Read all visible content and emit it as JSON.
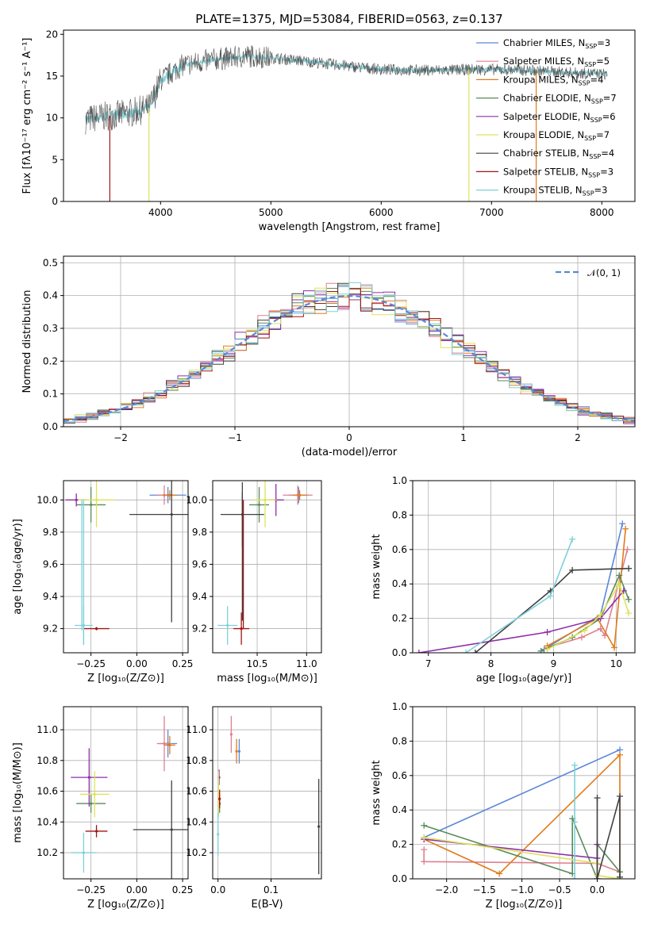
{
  "colors": {
    "Chabrier MILES": "#5b88d6",
    "Salpeter MILES": "#e07f8f",
    "Kroupa MILES": "#e07b1a",
    "Chabrier ELODIE": "#5a8a5a",
    "Salpeter ELODIE": "#8e2ea8",
    "Kroupa ELODIE": "#dde35a",
    "Chabrier STELIB": "#404040",
    "Salpeter STELIB": "#a01515",
    "Kroupa STELIB": "#7fd0d8"
  },
  "chart_data": [
    {
      "id": "spectrum",
      "type": "line",
      "title": "PLATE=1375, MJD=53084, FIBERID=0563, z=0.137",
      "xlabel": "wavelength [Angstrom, rest frame]",
      "ylabel": "Flux [fλ10⁻¹⁷ erg cm⁻² s⁻¹ A⁻¹]",
      "xlim": [
        3120,
        8300
      ],
      "ylim": [
        0,
        20.5
      ],
      "xticks": [
        4000,
        5000,
        6000,
        7000,
        8000
      ],
      "yticks": [
        0,
        5,
        10,
        15,
        20
      ],
      "grid": false,
      "legend_position": "top-right",
      "legend": [
        {
          "label": "Chabrier MILES, N",
          "sub": "SSP",
          "tail": "=3",
          "color_key": "Chabrier MILES"
        },
        {
          "label": "Salpeter MILES, N",
          "sub": "SSP",
          "tail": "=5",
          "color_key": "Salpeter MILES"
        },
        {
          "label": "Kroupa MILES, N",
          "sub": "SSP",
          "tail": "=4",
          "color_key": "Kroupa MILES"
        },
        {
          "label": "Chabrier ELODIE, N",
          "sub": "SSP",
          "tail": "=7",
          "color_key": "Chabrier ELODIE"
        },
        {
          "label": "Salpeter ELODIE, N",
          "sub": "SSP",
          "tail": "=6",
          "color_key": "Salpeter ELODIE"
        },
        {
          "label": "Kroupa ELODIE, N",
          "sub": "SSP",
          "tail": "=7",
          "color_key": "Kroupa ELODIE"
        },
        {
          "label": "Chabrier STELIB, N",
          "sub": "SSP",
          "tail": "=4",
          "color_key": "Chabrier STELIB"
        },
        {
          "label": "Salpeter STELIB, N",
          "sub": "SSP",
          "tail": "=3",
          "color_key": "Salpeter STELIB"
        },
        {
          "label": "Kroupa STELIB, N",
          "sub": "SSP",
          "tail": "=3",
          "color_key": "Kroupa STELIB"
        }
      ],
      "continuum": {
        "x": [
          3320,
          3500,
          3700,
          3900,
          4000,
          4200,
          4500,
          4800,
          5000,
          5300,
          5700,
          6000,
          6300,
          6600,
          6800,
          7000,
          7300,
          7600,
          7900,
          8050
        ],
        "y": [
          9.8,
          10.2,
          10.5,
          11.2,
          14.5,
          16.3,
          17.0,
          17.4,
          17.2,
          16.8,
          16.2,
          15.8,
          15.7,
          15.7,
          15.8,
          15.8,
          15.7,
          15.5,
          15.3,
          15.2
        ]
      },
      "drops": [
        {
          "x": 3540,
          "color_key": "Salpeter STELIB"
        },
        {
          "x": 3895,
          "color_key": "Kroupa ELODIE"
        },
        {
          "x": 6795,
          "color_key": "Kroupa ELODIE"
        },
        {
          "x": 7405,
          "color_key": "Kroupa MILES"
        }
      ]
    },
    {
      "id": "residuals",
      "type": "histogram",
      "xlabel": "(data-model)/error",
      "ylabel": "Normed distribution",
      "xlim": [
        -2.5,
        2.5
      ],
      "ylim": [
        0,
        0.52
      ],
      "xticks": [
        -2,
        -1,
        0,
        1,
        2
      ],
      "yticks": [
        0.0,
        0.1,
        0.2,
        0.3,
        0.4,
        0.5
      ],
      "grid": true,
      "bin_width": 0.1,
      "reference_legend": "𝒩(0, 1)",
      "reference_color": "#5b88d6"
    },
    {
      "id": "age-vs-Z",
      "type": "scatter",
      "xlabel": "Z [log₁₀(Z/Z⊙)]",
      "ylabel": "age  [log₁₀(age/yr)]",
      "xlim": [
        -0.4,
        0.28
      ],
      "ylim": [
        9.05,
        10.12
      ],
      "xticks": [
        -0.25,
        0.0,
        0.25
      ],
      "xtick_labels": [
        "−0.25",
        "0.00",
        "0.25"
      ],
      "yticks": [
        9.2,
        9.4,
        9.6,
        9.8,
        10.0
      ],
      "grid": true,
      "points": [
        {
          "x": 0.17,
          "y": 10.03,
          "xe": 0.1,
          "ye": 0.05,
          "color_key": "Chabrier MILES"
        },
        {
          "x": 0.15,
          "y": 10.03,
          "xe": 0.04,
          "ye": 0.06,
          "color_key": "Salpeter MILES"
        },
        {
          "x": 0.18,
          "y": 10.03,
          "xe": 0.04,
          "ye": 0.03,
          "color_key": "Kroupa MILES"
        },
        {
          "x": -0.25,
          "y": 9.97,
          "xe": 0.08,
          "ye": 0.11,
          "color_key": "Chabrier ELODIE"
        },
        {
          "x": -0.33,
          "y": 10.0,
          "xe": 0.06,
          "ye": 0.04,
          "color_key": "Salpeter ELODIE"
        },
        {
          "x": -0.22,
          "y": 10.0,
          "xe": 0.1,
          "ye": 0.17,
          "color_key": "Kroupa ELODIE"
        },
        {
          "x": 0.19,
          "y": 9.91,
          "xe": 0.23,
          "ye": 0.67,
          "color_key": "Chabrier STELIB"
        },
        {
          "x": -0.22,
          "y": 9.2,
          "xe": 0.07,
          "ye": 0.01,
          "color_key": "Salpeter STELIB"
        },
        {
          "x": -0.29,
          "y": 9.22,
          "xe": 0.05,
          "ye": 0.12,
          "color_key": "Kroupa STELIB"
        }
      ],
      "extra_vlines": [
        {
          "x": -0.29,
          "y1": 9.1,
          "y2": 10.0,
          "color_key": "Kroupa STELIB"
        },
        {
          "x": -0.3,
          "y1": 9.19,
          "y2": 10.0,
          "color_key": "Kroupa STELIB"
        }
      ]
    },
    {
      "id": "age-vs-mass",
      "type": "scatter",
      "xlabel": "mass [log₁₀(M/M⊙)]",
      "ylabel": "",
      "xlim": [
        10.05,
        11.15
      ],
      "ylim": [
        9.05,
        10.12
      ],
      "xticks": [
        10.5,
        11.0
      ],
      "xtick_labels": [
        "10.5",
        "11.0"
      ],
      "yticks": [
        9.2,
        9.4,
        9.6,
        9.8,
        10.0
      ],
      "grid": true,
      "points": [
        {
          "x": 10.92,
          "y": 10.03,
          "xe": 0.1,
          "ye": 0.05,
          "color_key": "Chabrier MILES"
        },
        {
          "x": 10.91,
          "y": 10.03,
          "xe": 0.15,
          "ye": 0.06,
          "color_key": "Salpeter MILES"
        },
        {
          "x": 10.93,
          "y": 10.03,
          "xe": 0.07,
          "ye": 0.03,
          "color_key": "Kroupa MILES"
        },
        {
          "x": 10.52,
          "y": 9.97,
          "xe": 0.1,
          "ye": 0.11,
          "color_key": "Chabrier ELODIE"
        },
        {
          "x": 10.69,
          "y": 10.0,
          "xe": 0.08,
          "ye": 0.1,
          "color_key": "Salpeter ELODIE"
        },
        {
          "x": 10.58,
          "y": 10.0,
          "xe": 0.12,
          "ye": 0.17,
          "color_key": "Kroupa ELODIE"
        },
        {
          "x": 10.35,
          "y": 9.91,
          "xe": 0.22,
          "ye": 0.2,
          "color_key": "Chabrier STELIB"
        },
        {
          "x": 10.34,
          "y": 9.2,
          "xe": 0.08,
          "ye": 0.1,
          "color_key": "Salpeter STELIB"
        },
        {
          "x": 10.2,
          "y": 9.22,
          "xe": 0.1,
          "ye": 0.12,
          "color_key": "Kroupa STELIB"
        }
      ],
      "extra_vlines": [
        {
          "x": 10.36,
          "y1": 9.2,
          "y2": 10.0,
          "color_key": "Salpeter STELIB"
        },
        {
          "x": 10.35,
          "y1": 9.25,
          "y2": 10.05,
          "color_key": "Chabrier STELIB"
        }
      ]
    },
    {
      "id": "weight-vs-age",
      "type": "line",
      "xlabel": "age  [log₁₀(age/yr)]",
      "ylabel": "mass weight",
      "xlim": [
        6.75,
        10.3
      ],
      "ylim": [
        0,
        1.0
      ],
      "xticks": [
        7,
        8,
        9,
        10
      ],
      "yticks": [
        0.0,
        0.2,
        0.4,
        0.6,
        0.8,
        1.0
      ],
      "grid": true,
      "series": [
        {
          "color_key": "Chabrier MILES",
          "x": [
            8.85,
            9.75,
            10.1
          ],
          "y": [
            0.02,
            0.22,
            0.75
          ]
        },
        {
          "color_key": "Salpeter MILES",
          "x": [
            8.9,
            9.45,
            9.75,
            9.82,
            10.18
          ],
          "y": [
            0.03,
            0.09,
            0.14,
            0.1,
            0.6
          ]
        },
        {
          "color_key": "Kroupa MILES",
          "x": [
            8.9,
            9.7,
            9.97,
            10.15
          ],
          "y": [
            0.04,
            0.2,
            0.03,
            0.72
          ]
        },
        {
          "color_key": "Chabrier ELODIE",
          "x": [
            8.8,
            9.3,
            9.75,
            10.05,
            10.2
          ],
          "y": [
            0.01,
            0.09,
            0.2,
            0.45,
            0.31
          ]
        },
        {
          "color_key": "Salpeter ELODIE",
          "x": [
            6.85,
            8.9,
            9.75,
            10.12
          ],
          "y": [
            0.0,
            0.12,
            0.2,
            0.36
          ]
        },
        {
          "color_key": "Kroupa ELODIE",
          "x": [
            8.9,
            9.5,
            9.75,
            10.05,
            10.2
          ],
          "y": [
            0.02,
            0.13,
            0.22,
            0.4,
            0.23
          ]
        },
        {
          "color_key": "Chabrier STELIB",
          "x": [
            7.75,
            8.95,
            9.3,
            10.2
          ],
          "y": [
            0.0,
            0.36,
            0.48,
            0.49
          ]
        },
        {
          "color_key": "Kroupa STELIB",
          "x": [
            7.6,
            8.95,
            9.3
          ],
          "y": [
            0.0,
            0.33,
            0.66
          ]
        }
      ]
    },
    {
      "id": "mass-vs-Z",
      "type": "scatter",
      "xlabel": "Z [log₁₀(Z/Z⊙)]",
      "ylabel": "mass [log₁₀(M/M⊙)]",
      "xlim": [
        -0.4,
        0.28
      ],
      "ylim": [
        10.03,
        11.15
      ],
      "xticks": [
        -0.25,
        0.0,
        0.25
      ],
      "xtick_labels": [
        "−0.25",
        "0.00",
        "0.25"
      ],
      "yticks": [
        10.2,
        10.4,
        10.6,
        10.8,
        11.0
      ],
      "grid": true,
      "points": [
        {
          "x": 0.17,
          "y": 10.91,
          "xe": 0.05,
          "ye": 0.09,
          "color_key": "Chabrier MILES"
        },
        {
          "x": 0.15,
          "y": 10.91,
          "xe": 0.04,
          "ye": 0.18,
          "color_key": "Salpeter MILES"
        },
        {
          "x": 0.18,
          "y": 10.9,
          "xe": 0.03,
          "ye": 0.06,
          "color_key": "Kroupa MILES"
        },
        {
          "x": -0.25,
          "y": 10.52,
          "xe": 0.08,
          "ye": 0.06,
          "color_key": "Chabrier ELODIE"
        },
        {
          "x": -0.26,
          "y": 10.69,
          "xe": 0.1,
          "ye": 0.19,
          "color_key": "Salpeter ELODIE"
        },
        {
          "x": -0.23,
          "y": 10.58,
          "xe": 0.08,
          "ye": 0.15,
          "color_key": "Kroupa ELODIE"
        },
        {
          "x": 0.19,
          "y": 10.35,
          "xe": 0.21,
          "ye": 0.32,
          "color_key": "Chabrier STELIB"
        },
        {
          "x": -0.22,
          "y": 10.34,
          "xe": 0.06,
          "ye": 0.04,
          "color_key": "Salpeter STELIB"
        },
        {
          "x": -0.29,
          "y": 10.2,
          "xe": 0.07,
          "ye": 0.13,
          "color_key": "Kroupa STELIB"
        }
      ]
    },
    {
      "id": "mass-vs-EBV",
      "type": "scatter",
      "xlabel": "E(B-V)",
      "ylabel": "",
      "xlim": [
        -0.01,
        0.195
      ],
      "ylim": [
        10.03,
        11.15
      ],
      "xticks": [
        0.0,
        0.1
      ],
      "xtick_labels": [
        "0.0",
        "0.1"
      ],
      "yticks": [
        10.2,
        10.4,
        10.6,
        10.8,
        11.0
      ],
      "grid": true,
      "points": [
        {
          "x": 0.04,
          "y": 10.86,
          "xe": 0.0,
          "ye": 0.08,
          "color_key": "Chabrier MILES"
        },
        {
          "x": 0.025,
          "y": 10.97,
          "xe": 0.0,
          "ye": 0.12,
          "color_key": "Salpeter MILES"
        },
        {
          "x": 0.035,
          "y": 10.86,
          "xe": 0.0,
          "ye": 0.08,
          "color_key": "Kroupa MILES"
        },
        {
          "x": 0.003,
          "y": 10.52,
          "xe": 0.0,
          "ye": 0.06,
          "color_key": "Chabrier ELODIE"
        },
        {
          "x": 0.002,
          "y": 10.69,
          "xe": 0.0,
          "ye": 0.05,
          "color_key": "Salpeter ELODIE"
        },
        {
          "x": 0.001,
          "y": 10.58,
          "xe": 0.0,
          "ye": 0.15,
          "color_key": "Kroupa ELODIE"
        },
        {
          "x": 0.19,
          "y": 10.37,
          "xe": 0.0,
          "ye": 0.31,
          "color_key": "Chabrier STELIB"
        },
        {
          "x": 0.003,
          "y": 10.55,
          "xe": 0.0,
          "ye": 0.06,
          "color_key": "Salpeter STELIB"
        },
        {
          "x": 0.0,
          "y": 10.32,
          "xe": 0.0,
          "ye": 0.14,
          "color_key": "Kroupa STELIB"
        }
      ]
    },
    {
      "id": "weight-vs-Z",
      "type": "line",
      "xlabel": "Z [log₁₀(Z/Z⊙)]",
      "ylabel": "mass weight",
      "xlim": [
        -2.45,
        0.5
      ],
      "ylim": [
        0,
        1.0
      ],
      "xticks": [
        -2.0,
        -1.5,
        -1.0,
        -0.5,
        0.0
      ],
      "xtick_labels": [
        "−2.0",
        "−1.5",
        "−1.0",
        "−0.5",
        "0.0"
      ],
      "yticks": [
        0.0,
        0.2,
        0.4,
        0.6,
        0.8,
        1.0
      ],
      "grid": true,
      "series": [
        {
          "color_key": "Chabrier MILES",
          "x": [
            -2.3,
            0.3
          ],
          "y": [
            0.24,
            0.75
          ]
        },
        {
          "color_key": "Salpeter MILES",
          "x": [
            -2.3,
            -2.3,
            0.0,
            0.3
          ],
          "y": [
            0.17,
            0.1,
            0.09,
            0.04
          ]
        },
        {
          "color_key": "Kroupa MILES",
          "x": [
            -2.3,
            -1.3,
            0.3,
            0.3
          ],
          "y": [
            0.23,
            0.03,
            0.72,
            0.0
          ]
        },
        {
          "color_key": "Chabrier ELODIE",
          "x": [
            -2.3,
            -0.33,
            -0.33,
            0.0,
            0.0,
            0.3
          ],
          "y": [
            0.31,
            0.03,
            0.35,
            0.0,
            0.2,
            0.04
          ]
        },
        {
          "color_key": "Salpeter ELODIE",
          "x": [
            -2.3,
            0.0,
            0.0,
            0.0
          ],
          "y": [
            0.23,
            0.12,
            0.2,
            0.0
          ]
        },
        {
          "color_key": "Kroupa ELODIE",
          "x": [
            -2.3,
            0.0,
            0.0,
            0.3
          ],
          "y": [
            0.24,
            0.09,
            0.02,
            0.0
          ]
        },
        {
          "color_key": "Chabrier STELIB",
          "x": [
            0.0,
            0.0,
            0.3,
            0.3
          ],
          "y": [
            0.47,
            0.0,
            0.48,
            0.01
          ]
        },
        {
          "color_key": "Kroupa STELIB",
          "x": [
            -0.3,
            -0.3,
            -0.3
          ],
          "y": [
            0.66,
            0.33,
            0.0
          ]
        }
      ]
    }
  ]
}
